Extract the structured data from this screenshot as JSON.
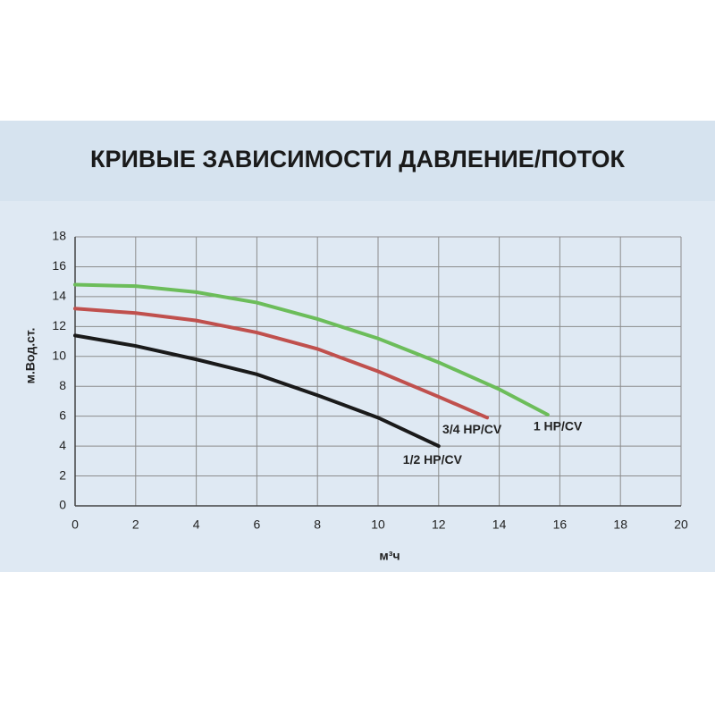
{
  "chart_data": {
    "type": "line",
    "title": "КРИВЫЕ ЗАВИСИМОСТИ ДАВЛЕНИЕ/ПОТОК",
    "x_label": "м³ч",
    "y_label": "м.Вод.ст.",
    "xlim": [
      0,
      20
    ],
    "xticks": [
      0,
      2,
      4,
      6,
      8,
      10,
      12,
      14,
      16,
      18,
      20
    ],
    "ylim": [
      0,
      18
    ],
    "yticks": [
      0,
      2,
      4,
      6,
      8,
      10,
      12,
      14,
      16,
      18
    ],
    "grid": true,
    "series": [
      {
        "name": "1 HP/CV",
        "color": "#6cbd5a",
        "x": [
          0,
          2,
          4,
          6,
          8,
          10,
          12,
          14,
          15.6
        ],
        "values": [
          14.8,
          14.7,
          14.3,
          13.6,
          12.5,
          11.2,
          9.6,
          7.8,
          6.1
        ]
      },
      {
        "name": "3/4 HP/CV",
        "color": "#c0504d",
        "x": [
          0,
          2,
          4,
          6,
          8,
          10,
          12,
          13.6
        ],
        "values": [
          13.2,
          12.9,
          12.4,
          11.6,
          10.5,
          9.0,
          7.3,
          5.9
        ]
      },
      {
        "name": "1/2 HP/CV",
        "color": "#1a1a1a",
        "x": [
          0,
          2,
          4,
          6,
          8,
          10,
          12
        ],
        "values": [
          11.4,
          10.7,
          9.8,
          8.8,
          7.4,
          5.9,
          4.0
        ]
      }
    ]
  }
}
